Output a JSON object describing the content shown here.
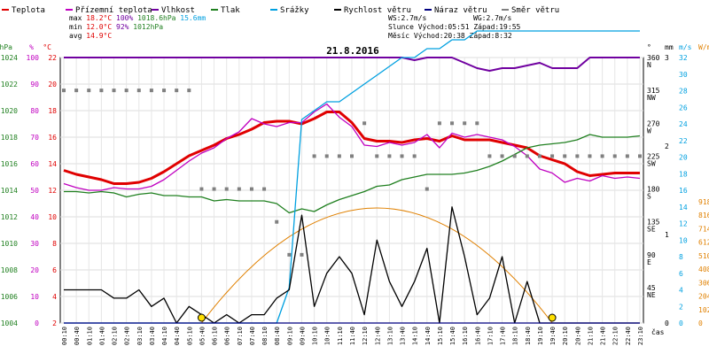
{
  "legend": [
    {
      "label": "Teplota",
      "color": "#e00000"
    },
    {
      "label": "Přízemní teplota",
      "color": "#c000c0"
    },
    {
      "label": "Vlhkost",
      "color": "#7000a0"
    },
    {
      "label": "Tlak",
      "color": "#208020"
    },
    {
      "label": "Srážky",
      "color": "#00a0e0"
    },
    {
      "label": "Rychlost větru",
      "color": "#000000"
    },
    {
      "label": "Náraz větru",
      "color": "#000080"
    },
    {
      "label": "Směr větru",
      "color": "#808080"
    }
  ],
  "stats": {
    "max": {
      "label": "max",
      "temp": "18.2°C",
      "hum": "100%",
      "press": "1018.6hPa",
      "rain": "15.6mm"
    },
    "min": {
      "label": "min",
      "temp": "12.0°C",
      "hum": "92%",
      "press": "1012hPa"
    },
    "avg": {
      "label": "avg",
      "temp": "14.9°C"
    }
  },
  "sun": {
    "ws": "WS:2.7m/s",
    "wg": "WG:2.7m/s",
    "slunce": "Slunce Východ:05:51",
    "slunce_zapad": "Západ:19:55",
    "mesic": "Měsíc Východ:20:38",
    "mesic_zapad": "Západ:8:32"
  },
  "chart_data": {
    "type": "line",
    "title": "21.8.2016",
    "xlabel": "čas",
    "x": [
      "00:10",
      "00:40",
      "01:10",
      "01:40",
      "02:10",
      "02:40",
      "03:10",
      "03:40",
      "04:10",
      "04:40",
      "05:10",
      "05:40",
      "06:10",
      "06:40",
      "07:10",
      "07:40",
      "08:10",
      "08:40",
      "09:10",
      "09:40",
      "10:10",
      "10:40",
      "11:10",
      "11:40",
      "12:10",
      "12:40",
      "13:10",
      "13:40",
      "14:10",
      "14:40",
      "15:10",
      "15:40",
      "16:10",
      "16:40",
      "17:10",
      "17:40",
      "18:10",
      "18:40",
      "19:10",
      "19:40",
      "20:10",
      "20:40",
      "21:10",
      "21:40",
      "22:10",
      "22:40",
      "23:10"
    ],
    "axes": {
      "hpa": {
        "label": "hPa",
        "ticks": [
          "1004",
          "1006",
          "1008",
          "1010",
          "1012",
          "1014",
          "1016",
          "1018",
          "1020",
          "1022",
          "1024"
        ]
      },
      "pct": {
        "label": "%",
        "ticks": [
          "0",
          "10",
          "20",
          "30",
          "40",
          "50",
          "60",
          "70",
          "80",
          "90",
          "100"
        ]
      },
      "temp": {
        "label": "°C",
        "ticks": [
          "2",
          "4",
          "6",
          "8",
          "10",
          "12",
          "14",
          "16",
          "18",
          "20",
          "22"
        ]
      },
      "dir": {
        "label": "°",
        "ticks": [
          "360 N",
          "315 NW",
          "270 W",
          "225 SW",
          "180 S",
          "135 SE",
          "90 E",
          "45 NE"
        ]
      },
      "rain": {
        "label": "mm",
        "ticks": [
          "0",
          "1",
          "2",
          "3"
        ]
      },
      "wind": {
        "label": "m/s",
        "ticks": [
          "0",
          "2",
          "4",
          "6",
          "8",
          "10",
          "12",
          "14",
          "16",
          "18",
          "20",
          "22",
          "24",
          "26",
          "28",
          "30",
          "32"
        ]
      },
      "sol": {
        "label": "W/m²",
        "ticks": [
          "0",
          "102",
          "204",
          "306",
          "408",
          "510",
          "612",
          "714",
          "816",
          "918"
        ]
      }
    },
    "series": [
      {
        "name": "Teplota",
        "color": "#e00000",
        "axis": "temp",
        "values": [
          13.5,
          13.2,
          13.0,
          12.8,
          12.5,
          12.5,
          12.6,
          12.9,
          13.4,
          14.0,
          14.6,
          15.0,
          15.4,
          15.9,
          16.2,
          16.6,
          17.1,
          17.2,
          17.2,
          17.0,
          17.4,
          17.9,
          17.9,
          17.1,
          15.9,
          15.7,
          15.7,
          15.6,
          15.8,
          15.9,
          15.7,
          16.1,
          15.8,
          15.8,
          15.8,
          15.6,
          15.4,
          15.2,
          14.6,
          14.3,
          14.0,
          13.4,
          13.1,
          13.2,
          13.3,
          13.3,
          13.3
        ]
      },
      {
        "name": "Přízemní teplota",
        "color": "#c000c0",
        "axis": "temp",
        "values": [
          12.5,
          12.2,
          12.0,
          12.0,
          12.2,
          12.1,
          12.1,
          12.3,
          12.8,
          13.5,
          14.2,
          14.8,
          15.2,
          15.9,
          16.4,
          17.4,
          17.0,
          16.8,
          17.1,
          17.1,
          17.9,
          18.5,
          17.5,
          16.8,
          15.4,
          15.3,
          15.6,
          15.4,
          15.6,
          16.2,
          15.2,
          16.3,
          16.0,
          16.2,
          16.0,
          15.8,
          15.3,
          14.6,
          13.6,
          13.3,
          12.6,
          12.9,
          12.7,
          13.1,
          12.9,
          13.0,
          12.9
        ]
      },
      {
        "name": "Vlhkost",
        "color": "#7000a0",
        "axis": "pct",
        "values": [
          100,
          100,
          100,
          100,
          100,
          100,
          100,
          100,
          100,
          100,
          100,
          100,
          100,
          100,
          100,
          100,
          100,
          100,
          100,
          100,
          100,
          100,
          100,
          100,
          100,
          100,
          100,
          100,
          99,
          100,
          100,
          100,
          98,
          96,
          95,
          96,
          96,
          97,
          98,
          96,
          96,
          96,
          100,
          100,
          100,
          100,
          100
        ]
      },
      {
        "name": "Tlak",
        "color": "#208020",
        "axis": "hpa",
        "values": [
          1013.9,
          1013.9,
          1013.8,
          1013.9,
          1013.8,
          1013.5,
          1013.7,
          1013.8,
          1013.6,
          1013.6,
          1013.5,
          1013.5,
          1013.2,
          1013.3,
          1013.2,
          1013.2,
          1013.2,
          1013.0,
          1012.3,
          1012.6,
          1012.4,
          1012.9,
          1013.3,
          1013.6,
          1013.9,
          1014.3,
          1014.4,
          1014.8,
          1015.0,
          1015.2,
          1015.2,
          1015.2,
          1015.3,
          1015.5,
          1015.8,
          1016.2,
          1016.7,
          1017.2,
          1017.4,
          1017.5,
          1017.6,
          1017.8,
          1018.2,
          1018.0,
          1018.0,
          1018.0,
          1018.1
        ]
      },
      {
        "name": "Srážky",
        "color": "#00a0e0",
        "axis": "rain",
        "values": [
          0,
          0,
          0,
          0,
          0,
          0,
          0,
          0,
          0,
          0,
          0,
          0,
          0,
          0,
          0,
          0,
          0,
          0,
          0.4,
          2.3,
          2.4,
          2.5,
          2.5,
          2.6,
          2.7,
          2.8,
          2.9,
          3.0,
          3.0,
          3.1,
          3.1,
          3.2,
          3.2,
          3.3,
          3.3,
          3.3,
          3.3,
          3.3,
          3.3,
          3.3,
          3.3,
          3.3,
          3.3,
          3.3,
          3.3,
          3.3,
          3.3
        ]
      },
      {
        "name": "Rychlost větru",
        "color": "#000000",
        "axis": "wind",
        "values": [
          4,
          4,
          4,
          4,
          3,
          3,
          4,
          2,
          3,
          0,
          2,
          1,
          0,
          1,
          0,
          1,
          1,
          3,
          4,
          13,
          2,
          6,
          8,
          6,
          1,
          10,
          5,
          2,
          5,
          9,
          0,
          14,
          8,
          1,
          3,
          8,
          0,
          5,
          0,
          0,
          0,
          0,
          0,
          0,
          0,
          0,
          0
        ]
      },
      {
        "name": "Náraz větru",
        "color": "#000080",
        "axis": "wind",
        "values": [
          0,
          0,
          0,
          0,
          0,
          0,
          0,
          0,
          0,
          0,
          0,
          0,
          0,
          0,
          0,
          0,
          0,
          0,
          0,
          0,
          0,
          0,
          0,
          0,
          0,
          0,
          0,
          0,
          0,
          0,
          0,
          0,
          0,
          0,
          0,
          0,
          0,
          0,
          0,
          0,
          0,
          0,
          0,
          0,
          0,
          0,
          0
        ]
      },
      {
        "name": "Směr větru",
        "color": "#808080",
        "axis": "dir",
        "values": [
          315,
          315,
          315,
          315,
          315,
          315,
          315,
          315,
          315,
          315,
          315,
          180,
          180,
          180,
          180,
          180,
          180,
          135,
          90,
          90,
          225,
          225,
          225,
          225,
          270,
          225,
          225,
          225,
          225,
          180,
          270,
          270,
          270,
          270,
          225,
          225,
          225,
          225,
          225,
          225,
          225,
          225,
          225,
          225,
          225,
          225,
          225
        ]
      }
    ]
  }
}
